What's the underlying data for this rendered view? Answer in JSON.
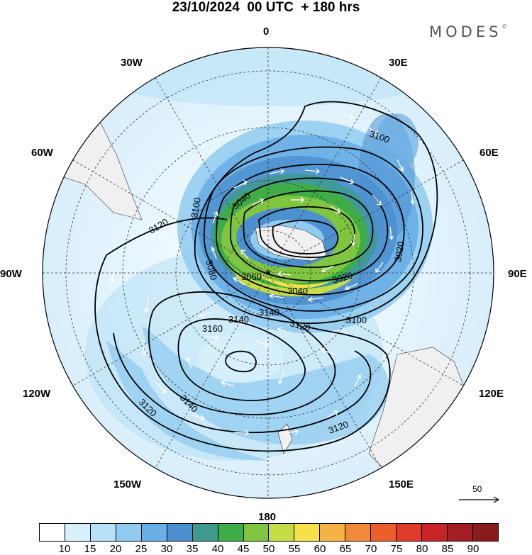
{
  "title": "23/10/2024  00 UTC  + 180 hrs",
  "logo": {
    "text": "MODES",
    "mark": "©"
  },
  "map": {
    "projection": "south-polar-stereographic",
    "longitude_labels": [
      "0",
      "30E",
      "60E",
      "90E",
      "120E",
      "150E",
      "180",
      "150W",
      "120W",
      "90W",
      "60W",
      "30W"
    ],
    "contour_labels": [
      "3100",
      "3100",
      "3040",
      "3080",
      "3060",
      "3040",
      "3020",
      "3020",
      "3120",
      "3100",
      "3140",
      "3120",
      "3160",
      "3140",
      "3120",
      "3140",
      "3120"
    ],
    "land_color": "#f0f0f0",
    "contour_color": "#000000",
    "wind_vector_color": "#ffffff"
  },
  "vector_scale": {
    "label": "50"
  },
  "colorbar": {
    "labels": [
      "10",
      "15",
      "20",
      "25",
      "30",
      "35",
      "40",
      "45",
      "50",
      "55",
      "60",
      "65",
      "70",
      "75",
      "80",
      "85",
      "90"
    ],
    "colors": [
      "#ffffff",
      "#d6f0fc",
      "#b8e1f7",
      "#8fcbf0",
      "#6aaee6",
      "#4c90cf",
      "#3e9a8c",
      "#3fad47",
      "#80c540",
      "#c6dc47",
      "#f6e14a",
      "#f5b342",
      "#f08a37",
      "#ec5f2d",
      "#e03a28",
      "#c82428",
      "#a31e22",
      "#8a1a1c"
    ]
  }
}
